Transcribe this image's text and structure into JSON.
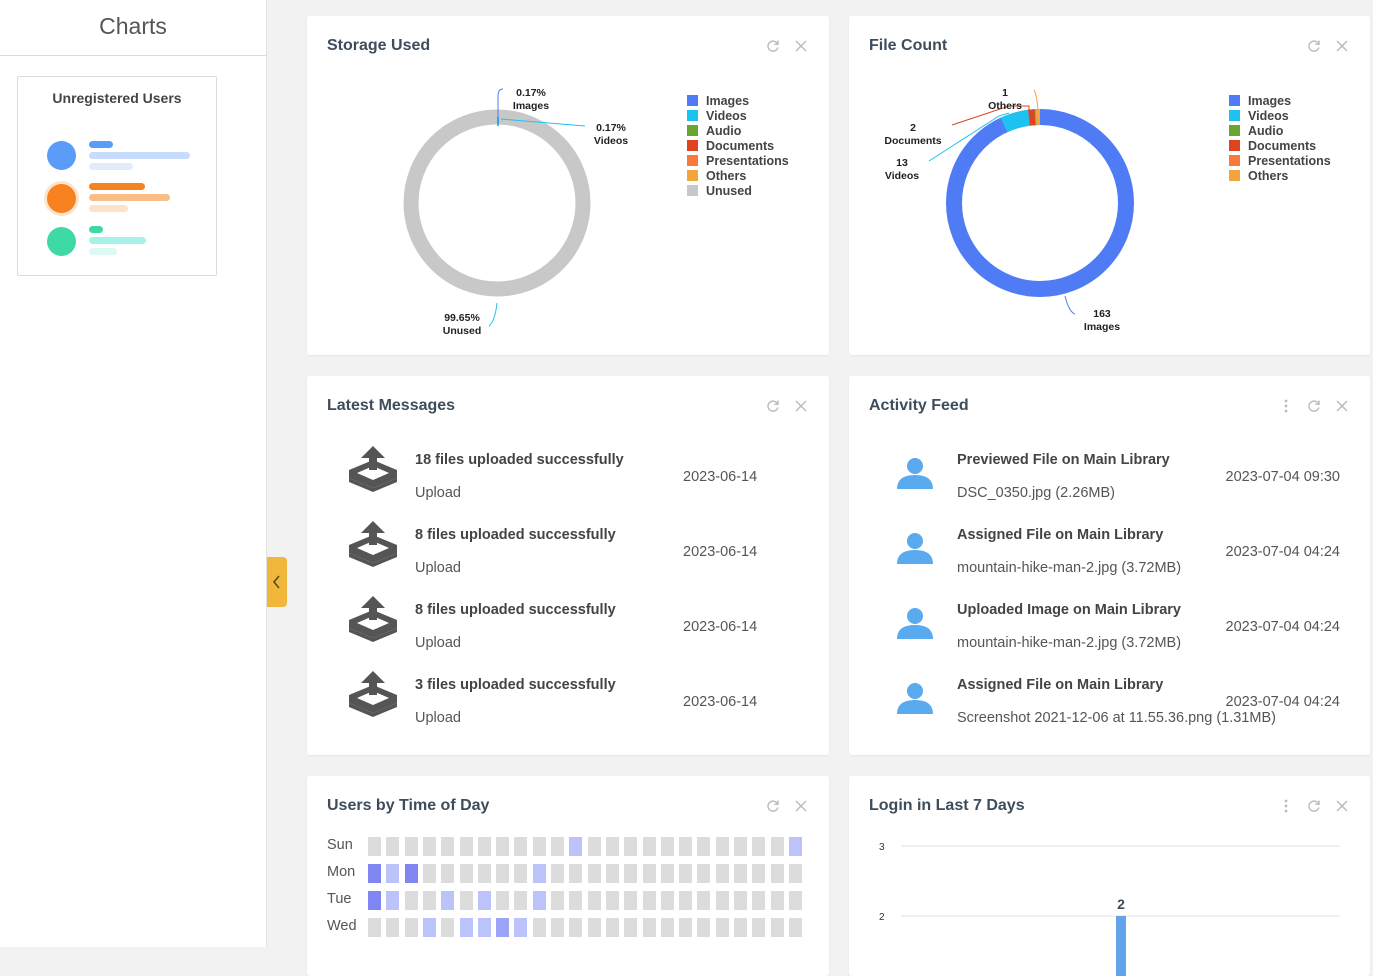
{
  "left": {
    "title": "Charts",
    "thumbnail": {
      "title": "Unregistered Users"
    }
  },
  "storage": {
    "title": "Storage Used",
    "labels": [
      {
        "pct": "0.17%",
        "name": "Images"
      },
      {
        "pct": "0.17%",
        "name": "Videos"
      },
      {
        "pct": "99.65%",
        "name": "Unused"
      }
    ],
    "legend": [
      "Images",
      "Videos",
      "Audio",
      "Documents",
      "Presentations",
      "Others",
      "Unused"
    ],
    "colors": [
      "#4f7cf5",
      "#1ec2f0",
      "#6aa531",
      "#e0441f",
      "#f77a3a",
      "#f2a53a",
      "#c8c8c8"
    ]
  },
  "filecount": {
    "title": "File Count",
    "labels": [
      {
        "value": "1",
        "name": "Others"
      },
      {
        "value": "2",
        "name": "Documents"
      },
      {
        "value": "13",
        "name": "Videos"
      },
      {
        "value": "163",
        "name": "Images"
      }
    ],
    "legend": [
      "Images",
      "Videos",
      "Audio",
      "Documents",
      "Presentations",
      "Others"
    ],
    "colors": [
      "#4f7cf5",
      "#1ec2f0",
      "#6aa531",
      "#e0441f",
      "#f77a3a",
      "#f2a53a"
    ]
  },
  "messages": {
    "title": "Latest Messages",
    "items": [
      {
        "title": "18 files uploaded successfully",
        "type": "Upload",
        "date": "2023-06-14"
      },
      {
        "title": "8 files uploaded successfully",
        "type": "Upload",
        "date": "2023-06-14"
      },
      {
        "title": "8 files uploaded successfully",
        "type": "Upload",
        "date": "2023-06-14"
      },
      {
        "title": "3 files uploaded successfully",
        "type": "Upload",
        "date": "2023-06-14"
      }
    ]
  },
  "activity": {
    "title": "Activity Feed",
    "items": [
      {
        "title": "Previewed File on Main Library",
        "detail": "DSC_0350.jpg (2.26MB)",
        "time": "2023-07-04 09:30"
      },
      {
        "title": "Assigned File on Main Library",
        "detail": "mountain-hike-man-2.jpg (3.72MB)",
        "time": "2023-07-04 04:24"
      },
      {
        "title": "Uploaded Image on Main Library",
        "detail": "mountain-hike-man-2.jpg (3.72MB)",
        "time": "2023-07-04 04:24"
      },
      {
        "title": "Assigned File on Main Library",
        "detail": "Screenshot 2021-12-06 at 11.55.36.png (1.31MB)",
        "time": "2023-07-04 04:24"
      }
    ]
  },
  "heatmap": {
    "title": "Users by Time of Day",
    "days": [
      "Sun",
      "Mon",
      "Tue",
      "Wed"
    ],
    "levels": [
      [
        0,
        0,
        0,
        0,
        0,
        0,
        0,
        0,
        0,
        0,
        0,
        1,
        0,
        0,
        0,
        0,
        0,
        0,
        0,
        0,
        0,
        0,
        0,
        1
      ],
      [
        3,
        1,
        3,
        0,
        0,
        0,
        0,
        0,
        0,
        1,
        0,
        0,
        0,
        0,
        0,
        0,
        0,
        0,
        0,
        0,
        0,
        0,
        0,
        0
      ],
      [
        3,
        1,
        0,
        0,
        1,
        0,
        1,
        0,
        0,
        1,
        0,
        0,
        0,
        0,
        0,
        0,
        0,
        0,
        0,
        0,
        0,
        0,
        0,
        0
      ],
      [
        0,
        0,
        0,
        1,
        0,
        1,
        1,
        2,
        1,
        0,
        0,
        0,
        0,
        0,
        0,
        0,
        0,
        0,
        0,
        0,
        0,
        0,
        0,
        0
      ]
    ],
    "level_colors": [
      "#dcdcdc",
      "#bcc3fa",
      "#9aa3f7",
      "#7f86f2"
    ]
  },
  "login": {
    "title": "Login in Last 7 Days",
    "y_ticks": [
      "3",
      "2"
    ],
    "bar_label": "2",
    "bar_color": "#62a4ea"
  }
}
